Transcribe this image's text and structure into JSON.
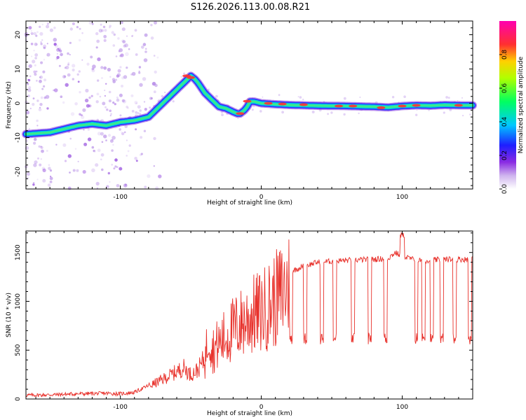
{
  "title": "S126.2026.113.00.08.R21",
  "chart_data": [
    {
      "type": "heatmap",
      "name": "spectrogram",
      "xlabel": "Height of straight line (km)",
      "ylabel": "Frequency (Hz)",
      "xlim": [
        -167,
        150
      ],
      "ylim": [
        -25,
        24
      ],
      "xticks": [
        -100,
        0,
        100
      ],
      "yticks": [
        -20,
        -10,
        0,
        10,
        20
      ],
      "ridge": {
        "x": [
          -167,
          -150,
          -140,
          -130,
          -120,
          -110,
          -100,
          -90,
          -80,
          -75,
          -70,
          -65,
          -60,
          -55,
          -50,
          -47,
          -45,
          -40,
          -35,
          -30,
          -25,
          -20,
          -17,
          -15,
          -12,
          -10,
          -8,
          -5,
          0,
          10,
          20,
          40,
          60,
          80,
          90,
          100,
          110,
          120,
          130,
          140,
          150
        ],
        "y": [
          -9,
          -8.5,
          -7.5,
          -6.5,
          -6,
          -6.5,
          -5.5,
          -5,
          -4,
          -2,
          0,
          2,
          4,
          6,
          8,
          7,
          6,
          3,
          1,
          -1,
          -1.5,
          -2.5,
          -3,
          -3,
          -2,
          -1,
          0.5,
          0.5,
          0,
          -0.3,
          -0.5,
          -0.7,
          -0.8,
          -1,
          -1.2,
          -0.8,
          -0.6,
          -0.7,
          -0.5,
          -0.6,
          -0.6
        ]
      },
      "colorbar": {
        "label": "Normalized spectral amplitude",
        "range": [
          0,
          1
        ],
        "ticks": [
          "0.0",
          "0.2",
          "0.4",
          "0.6",
          "0.8"
        ]
      }
    },
    {
      "type": "line",
      "name": "snr",
      "xlabel": "Height of straight line (km)",
      "ylabel": "SNR (10 * v/v)",
      "xlim": [
        -167,
        150
      ],
      "ylim": [
        0,
        1720
      ],
      "xticks": [
        -100,
        0,
        100
      ],
      "yticks": [
        0,
        500,
        1000,
        1500
      ],
      "color": "#e8322c",
      "series": [
        {
          "name": "SNR",
          "x": [
            -167,
            -150,
            -130,
            -110,
            -100,
            -90,
            -80,
            -70,
            -60,
            -55,
            -50,
            -45,
            -40,
            -37,
            -35,
            -30,
            -25,
            -20,
            -15,
            -10,
            -5,
            0,
            5,
            10,
            15,
            20,
            25,
            30,
            35,
            40,
            50,
            60,
            70,
            80,
            90,
            95,
            100,
            110,
            120,
            130,
            140,
            150
          ],
          "y": [
            30,
            35,
            45,
            50,
            45,
            60,
            130,
            200,
            280,
            320,
            250,
            300,
            420,
            800,
            550,
            620,
            700,
            780,
            840,
            900,
            950,
            980,
            1050,
            1120,
            1200,
            1300,
            1330,
            1360,
            1380,
            1400,
            1410,
            1420,
            1425,
            1430,
            1440,
            1500,
            1460,
            1420,
            1420,
            1430,
            1430,
            1430
          ]
        }
      ],
      "dropouts": [
        21,
        31,
        43,
        52,
        65,
        77,
        88,
        100,
        110,
        115,
        121,
        128,
        137,
        148
      ],
      "dropout_level": 560
    }
  ]
}
